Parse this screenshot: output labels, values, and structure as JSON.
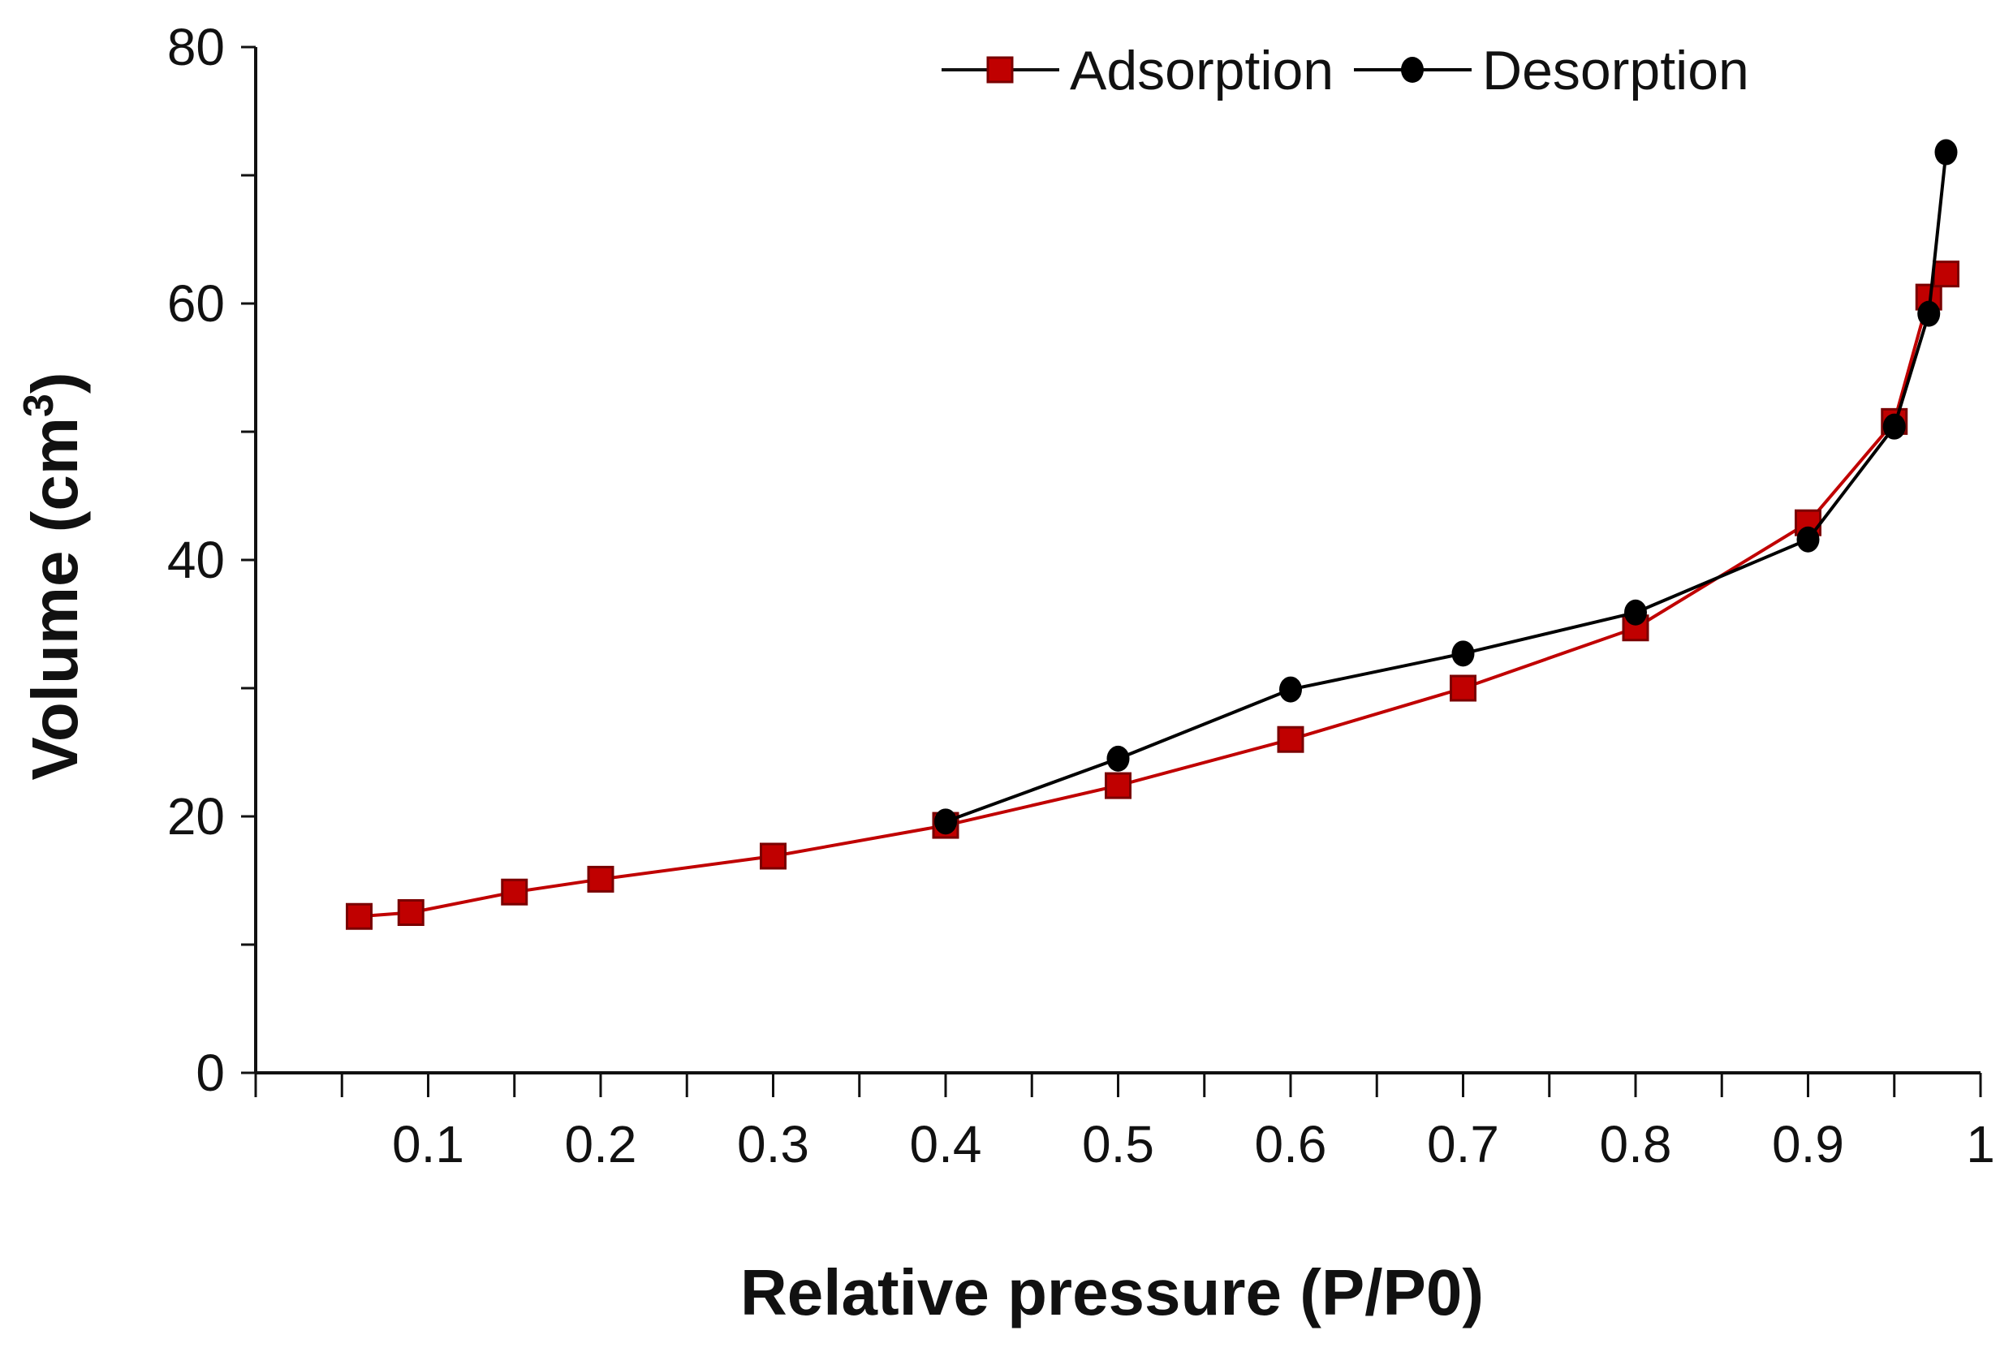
{
  "chart_data": {
    "type": "line",
    "xlabel": "Relative pressure (P/P0)",
    "ylabel": {
      "base": "Volume (cm",
      "sup": "3",
      "end": ")"
    },
    "xlim": [
      0,
      1
    ],
    "ylim": [
      0,
      80
    ],
    "x_ticks": [
      0.1,
      0.2,
      0.3,
      0.4,
      0.5,
      0.6,
      0.7,
      0.8,
      0.9,
      1
    ],
    "x_tick_labels": [
      "0.1",
      "0.2",
      "0.3",
      "0.4",
      "0.5",
      "0.6",
      "0.7",
      "0.8",
      "0.9",
      "1"
    ],
    "y_ticks": [
      0,
      20,
      40,
      60,
      80
    ],
    "y_tick_labels": [
      "0",
      "20",
      "40",
      "60",
      "80"
    ],
    "y_minor_step": 10,
    "x_minor_step": 0.05,
    "grid": false,
    "legend_position": "top-right",
    "series": [
      {
        "name": "Adsorption",
        "color": "#c00000",
        "marker": "square",
        "x": [
          0.06,
          0.09,
          0.15,
          0.2,
          0.3,
          0.4,
          0.5,
          0.6,
          0.7,
          0.8,
          0.9,
          0.95,
          0.97,
          0.98
        ],
        "y": [
          12.2,
          12.5,
          14.1,
          15.1,
          16.9,
          19.3,
          22.4,
          26.0,
          30.0,
          34.7,
          42.9,
          50.8,
          60.5,
          62.3
        ]
      },
      {
        "name": "Desorption",
        "color": "#000000",
        "marker": "circle",
        "x": [
          0.4,
          0.5,
          0.6,
          0.7,
          0.8,
          0.9,
          0.95,
          0.97,
          0.98
        ],
        "y": [
          19.6,
          24.5,
          29.9,
          32.7,
          35.9,
          41.6,
          50.4,
          59.2,
          71.8
        ]
      }
    ]
  }
}
